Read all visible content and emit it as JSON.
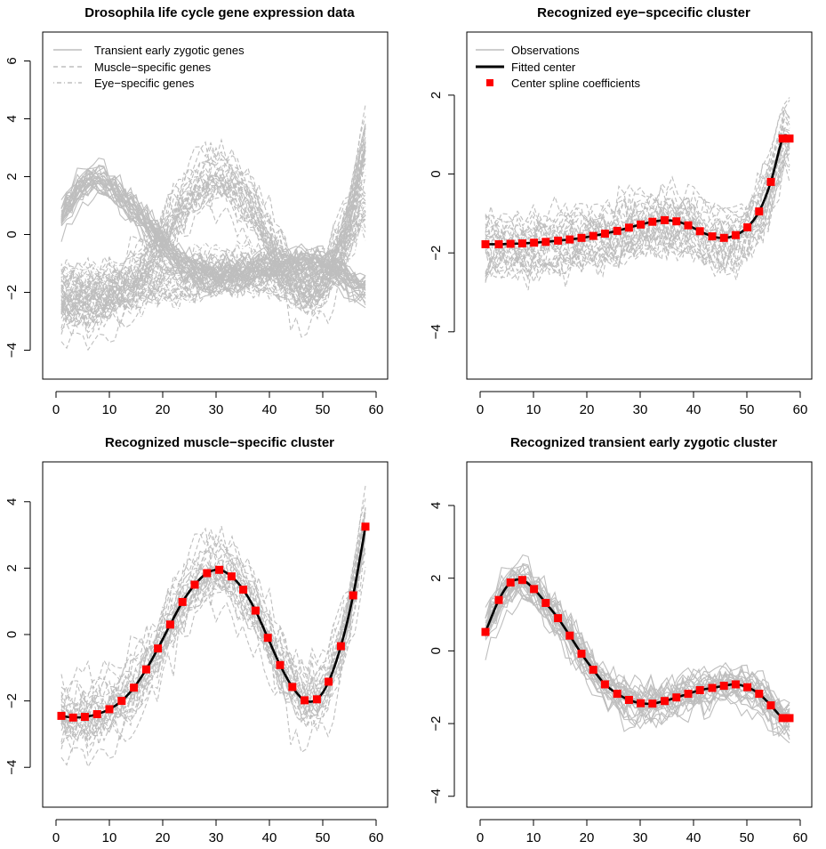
{
  "colors": {
    "observation": "#bebebe",
    "center_line": "#000000",
    "spline_coef": "#ff0000"
  },
  "chart_data": [
    {
      "type": "line",
      "title": "Drosophila life cycle gene expression data",
      "xlim": [
        0,
        60
      ],
      "ylim": [
        -5,
        7
      ],
      "x_ticks": [
        "0",
        "10",
        "20",
        "30",
        "40",
        "50",
        "60"
      ],
      "y_ticks": [
        "−4",
        "−2",
        "0",
        "2",
        "4",
        "6"
      ],
      "y_tick_values": [
        -4,
        -2,
        0,
        2,
        4,
        6
      ],
      "legend": {
        "position": "top-left",
        "entries": [
          {
            "label": "Transient early zygotic genes",
            "style": "solid"
          },
          {
            "label": "Muscle−specific genes",
            "style": "dashed"
          },
          {
            "label": "Eye−specific genes",
            "style": "dotdash"
          }
        ]
      },
      "series_groups": [
        "zygotic",
        "muscle",
        "eye"
      ]
    },
    {
      "type": "line",
      "title": "Recognized eye−spcecific cluster",
      "xlim": [
        0,
        60
      ],
      "ylim": [
        -5.2,
        3.6
      ],
      "x_ticks": [
        "0",
        "10",
        "20",
        "30",
        "40",
        "50",
        "60"
      ],
      "y_ticks": [
        "−4",
        "−2",
        "0",
        "2"
      ],
      "y_tick_values": [
        -4,
        -2,
        0,
        2
      ],
      "legend": {
        "position": "top-left",
        "entries": [
          {
            "label": "Observations",
            "style": "gray"
          },
          {
            "label": "Fitted center",
            "style": "black"
          },
          {
            "label": "Center spline coefficients",
            "style": "square"
          }
        ]
      },
      "observation_group": "eye",
      "observation_style": "dashed",
      "coefficients": {
        "x": [
          1,
          3.5,
          5.7,
          7.9,
          10.1,
          12.3,
          14.6,
          16.8,
          19,
          21.2,
          23.4,
          25.7,
          27.9,
          30.1,
          32.3,
          34.6,
          36.8,
          39,
          41.2,
          43.5,
          45.7,
          47.9,
          50.1,
          52.3,
          54.5,
          56.7,
          58
        ],
        "y": [
          -1.78,
          -1.78,
          -1.77,
          -1.76,
          -1.74,
          -1.72,
          -1.69,
          -1.66,
          -1.62,
          -1.57,
          -1.51,
          -1.44,
          -1.36,
          -1.28,
          -1.21,
          -1.17,
          -1.2,
          -1.3,
          -1.45,
          -1.58,
          -1.62,
          -1.55,
          -1.35,
          -0.95,
          -0.2,
          0.9,
          0.9
        ]
      }
    },
    {
      "type": "line",
      "title": "Recognized muscle−specific cluster",
      "xlim": [
        0,
        60
      ],
      "ylim": [
        -5.2,
        5.2
      ],
      "x_ticks": [
        "0",
        "10",
        "20",
        "30",
        "40",
        "50",
        "60"
      ],
      "y_ticks": [
        "−4",
        "−2",
        "0",
        "2",
        "4"
      ],
      "y_tick_values": [
        -4,
        -2,
        0,
        2,
        4
      ],
      "observation_group": "muscle",
      "observation_style": "dashed",
      "coefficients": {
        "x": [
          1,
          3.2,
          5.4,
          7.7,
          10,
          12.3,
          14.6,
          16.9,
          19.1,
          21.4,
          23.7,
          26,
          28.3,
          30.6,
          32.9,
          35.1,
          37.4,
          39.7,
          42,
          44.3,
          46.6,
          48.9,
          51.1,
          53.4,
          55.7,
          58
        ],
        "y": [
          -2.45,
          -2.5,
          -2.48,
          -2.4,
          -2.25,
          -2.0,
          -1.6,
          -1.05,
          -0.42,
          0.3,
          0.98,
          1.5,
          1.85,
          1.95,
          1.75,
          1.35,
          0.72,
          -0.1,
          -0.92,
          -1.58,
          -1.98,
          -1.95,
          -1.42,
          -0.35,
          1.18,
          3.25
        ]
      }
    },
    {
      "type": "line",
      "title": "Recognized transient early zygotic cluster",
      "xlim": [
        0,
        60
      ],
      "ylim": [
        -4.3,
        5.2
      ],
      "x_ticks": [
        "0",
        "10",
        "20",
        "30",
        "40",
        "50",
        "60"
      ],
      "y_ticks": [
        "−4",
        "−2",
        "0",
        "2",
        "4"
      ],
      "y_tick_values": [
        -4,
        -2,
        0,
        2,
        4
      ],
      "observation_group": "zygotic",
      "observation_style": "solid",
      "coefficients": {
        "x": [
          1,
          3.5,
          5.7,
          7.9,
          10.1,
          12.3,
          14.6,
          16.8,
          19,
          21.2,
          23.4,
          25.7,
          27.9,
          30.1,
          32.3,
          34.6,
          36.8,
          39,
          41.2,
          43.5,
          45.7,
          47.9,
          50.1,
          52.3,
          54.5,
          56.7,
          58
        ],
        "y": [
          0.52,
          1.4,
          1.88,
          1.95,
          1.7,
          1.32,
          0.9,
          0.42,
          -0.08,
          -0.52,
          -0.92,
          -1.18,
          -1.35,
          -1.44,
          -1.45,
          -1.38,
          -1.28,
          -1.18,
          -1.08,
          -1.02,
          -0.96,
          -0.92,
          -1.0,
          -1.18,
          -1.5,
          -1.85,
          -1.85
        ]
      }
    }
  ]
}
